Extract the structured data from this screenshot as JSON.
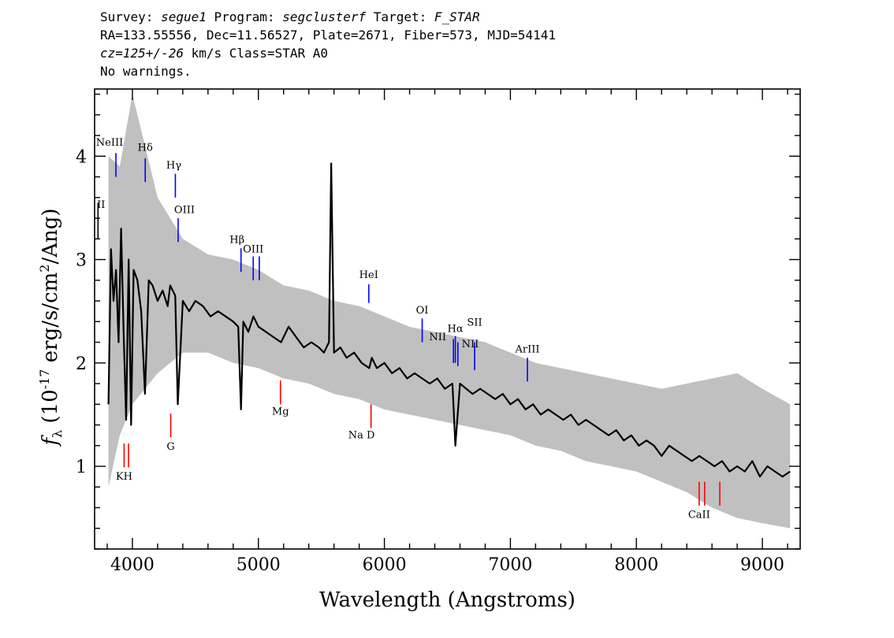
{
  "header": {
    "line1_survey_label": "Survey: ",
    "line1_survey": "segue1",
    "line1_program_label": " Program: ",
    "line1_program": "segclusterf",
    "line1_target_label": " Target: ",
    "line1_target": "F_STAR",
    "line2": "RA=133.55556, Dec=11.56527, Plate=2671, Fiber=573, MJD=54141",
    "line3_cz": "cz=125+/-26",
    "line3_rest": " km/s Class=STAR A0",
    "line4": "No warnings."
  },
  "chart_data": {
    "type": "line",
    "xlabel": "Wavelength (Angstroms)",
    "ylabel_parts": [
      "f",
      "λ",
      " (10",
      "-17",
      " erg/s/cm",
      "2",
      "/Ang)"
    ],
    "xlim": [
      3700,
      9300
    ],
    "ylim": [
      0.2,
      4.65
    ],
    "xticks": [
      4000,
      5000,
      6000,
      7000,
      8000,
      9000
    ],
    "yticks": [
      1,
      2,
      3,
      4
    ],
    "colors": {
      "flux": "#000000",
      "noise": "#c0c0c0",
      "emission": "#0000ff",
      "absorption": "#ff0000",
      "axis": "#000000"
    },
    "series": [
      {
        "role": "flux",
        "x": [
          3810,
          3830,
          3850,
          3870,
          3890,
          3910,
          3930,
          3950,
          3970,
          3990,
          4010,
          4040,
          4070,
          4100,
          4130,
          4160,
          4200,
          4240,
          4280,
          4300,
          4340,
          4360,
          4400,
          4450,
          4500,
          4560,
          4620,
          4680,
          4740,
          4800,
          4840,
          4862,
          4880,
          4920,
          4960,
          5000,
          5060,
          5120,
          5180,
          5240,
          5300,
          5360,
          5420,
          5480,
          5520,
          5560,
          5578,
          5600,
          5650,
          5700,
          5760,
          5820,
          5880,
          5900,
          5940,
          6000,
          6060,
          6120,
          6180,
          6240,
          6300,
          6360,
          6420,
          6480,
          6540,
          6563,
          6600,
          6650,
          6700,
          6760,
          6820,
          6880,
          6940,
          7000,
          7060,
          7120,
          7180,
          7240,
          7300,
          7360,
          7420,
          7480,
          7540,
          7600,
          7660,
          7720,
          7780,
          7840,
          7900,
          7960,
          8020,
          8080,
          8140,
          8200,
          8260,
          8320,
          8380,
          8440,
          8500,
          8560,
          8620,
          8680,
          8740,
          8800,
          8860,
          8920,
          8980,
          9040,
          9100,
          9160,
          9220
        ],
        "y": [
          1.6,
          3.1,
          2.6,
          2.9,
          2.2,
          3.3,
          2.3,
          1.45,
          3.0,
          1.4,
          2.9,
          2.8,
          2.5,
          1.7,
          2.8,
          2.75,
          2.6,
          2.7,
          2.55,
          2.75,
          2.65,
          1.6,
          2.6,
          2.5,
          2.6,
          2.55,
          2.45,
          2.5,
          2.45,
          2.4,
          2.35,
          1.55,
          2.4,
          2.3,
          2.45,
          2.35,
          2.3,
          2.25,
          2.2,
          2.35,
          2.25,
          2.15,
          2.2,
          2.15,
          2.1,
          2.2,
          3.93,
          2.1,
          2.15,
          2.05,
          2.1,
          2.0,
          1.95,
          2.05,
          1.95,
          2.0,
          1.9,
          1.95,
          1.85,
          1.9,
          1.85,
          1.8,
          1.85,
          1.75,
          1.8,
          1.2,
          1.8,
          1.75,
          1.7,
          1.75,
          1.7,
          1.65,
          1.7,
          1.6,
          1.65,
          1.55,
          1.6,
          1.5,
          1.55,
          1.5,
          1.45,
          1.5,
          1.4,
          1.45,
          1.4,
          1.35,
          1.3,
          1.35,
          1.25,
          1.3,
          1.2,
          1.25,
          1.2,
          1.1,
          1.2,
          1.15,
          1.1,
          1.05,
          1.1,
          1.05,
          1.0,
          1.05,
          0.95,
          1.0,
          0.95,
          1.05,
          0.9,
          1.0,
          0.95,
          0.9,
          0.95
        ]
      }
    ],
    "noise_envelope": {
      "x": [
        3810,
        3900,
        4000,
        4200,
        4400,
        4600,
        4800,
        5000,
        5200,
        5400,
        5600,
        5800,
        6000,
        6200,
        6400,
        6600,
        6800,
        7000,
        7200,
        7400,
        7600,
        7800,
        8000,
        8200,
        8400,
        8600,
        8800,
        9000,
        9220
      ],
      "low": [
        0.8,
        1.3,
        1.6,
        1.9,
        2.1,
        2.1,
        2.0,
        1.95,
        1.85,
        1.8,
        1.7,
        1.65,
        1.55,
        1.5,
        1.45,
        1.4,
        1.35,
        1.3,
        1.2,
        1.15,
        1.05,
        1.0,
        0.95,
        0.85,
        0.75,
        0.6,
        0.5,
        0.45,
        0.4
      ],
      "high": [
        4.0,
        3.9,
        4.6,
        3.6,
        3.2,
        3.05,
        3.0,
        2.9,
        2.75,
        2.7,
        2.6,
        2.55,
        2.45,
        2.35,
        2.3,
        2.25,
        2.2,
        2.1,
        2.0,
        1.95,
        1.9,
        1.85,
        1.8,
        1.75,
        1.8,
        1.85,
        1.9,
        1.75,
        1.6
      ]
    },
    "line_markers": [
      {
        "label": "NeIII",
        "kind": "emission",
        "x": 3869,
        "y0": 3.8,
        "y1": 4.03,
        "label_y": 4.1,
        "label_dx": -8
      },
      {
        "label": "Hδ",
        "kind": "emission",
        "x": 4102,
        "y0": 3.75,
        "y1": 3.98,
        "label_y": 4.05,
        "label_dx": 0
      },
      {
        "label": "Hγ",
        "kind": "emission",
        "x": 4341,
        "y0": 3.6,
        "y1": 3.83,
        "label_y": 3.88,
        "label_dx": -2
      },
      {
        "label": "OIII",
        "kind": "emission",
        "x": 4363,
        "y0": 3.17,
        "y1": 3.4,
        "label_y": 3.45,
        "label_dx": 8
      },
      {
        "label": "Hβ",
        "kind": "emission",
        "x": 4862,
        "y0": 2.88,
        "y1": 3.11,
        "label_y": 3.16,
        "label_dx": -5
      },
      {
        "label": "OIII",
        "kind": "emission",
        "x": 4959,
        "y0": 2.8,
        "y1": 3.03,
        "label_y": 3.07,
        "label_dx": 0
      },
      {
        "label": "OIII",
        "kind": "emission",
        "x": 5007,
        "y0": 2.8,
        "y1": 3.03,
        "label_y": 0,
        "label_dx": 0,
        "hide_label": true
      },
      {
        "label": "HeI",
        "kind": "emission",
        "x": 5876,
        "y0": 2.58,
        "y1": 2.76,
        "label_y": 2.82,
        "label_dx": 0
      },
      {
        "label": "OI",
        "kind": "emission",
        "x": 6300,
        "y0": 2.2,
        "y1": 2.43,
        "label_y": 2.48,
        "label_dx": 0
      },
      {
        "label": "NII",
        "kind": "emission",
        "x": 6548,
        "y0": 2.0,
        "y1": 2.23,
        "label_y": 2.22,
        "label_dx": -20
      },
      {
        "label": "Hα",
        "kind": "emission",
        "x": 6563,
        "y0": 2.0,
        "y1": 2.26,
        "label_y": 2.3,
        "label_dx": 0
      },
      {
        "label": "NII",
        "kind": "emission",
        "x": 6583,
        "y0": 1.97,
        "y1": 2.2,
        "label_y": 0,
        "label_dx": 0,
        "hide_label": true
      },
      {
        "label": "SII",
        "kind": "emission",
        "x": 6716,
        "y0": 1.93,
        "y1": 2.2,
        "label_y": 2.36,
        "label_dx": 0
      },
      {
        "label": "NII",
        "kind": "emission",
        "x": 6731,
        "y0": 1.93,
        "y1": 2.1,
        "label_y": 2.15,
        "label_dx": -8,
        "hide_line": true
      },
      {
        "label": "ArIII",
        "kind": "emission",
        "x": 7135,
        "y0": 1.82,
        "y1": 2.05,
        "label_y": 2.1,
        "label_dx": 0
      },
      {
        "label": "Mg",
        "kind": "absorption",
        "x": 5175,
        "y0": 1.6,
        "y1": 1.83,
        "label_y": 1.5,
        "label_dx": 0
      },
      {
        "label": "Na  D",
        "kind": "absorption",
        "x": 5894,
        "y0": 1.37,
        "y1": 1.6,
        "label_y": 1.27,
        "label_dx": -12
      },
      {
        "label": "G",
        "kind": "absorption",
        "x": 4304,
        "y0": 1.28,
        "y1": 1.51,
        "label_y": 1.16,
        "label_dx": 0
      },
      {
        "label": "KH",
        "kind": "absorption",
        "x": 3934,
        "y0": 0.99,
        "y1": 1.22,
        "label_y": 0.87,
        "label_dx": 0
      },
      {
        "label": "",
        "kind": "absorption",
        "x": 3969,
        "y0": 0.99,
        "y1": 1.22,
        "label_y": 0,
        "label_dx": 0,
        "hide_label": true
      },
      {
        "label": "CaII",
        "kind": "absorption",
        "x": 8498,
        "y0": 0.62,
        "y1": 0.85,
        "label_y": 0.5,
        "label_dx": 0
      },
      {
        "label": "",
        "kind": "absorption",
        "x": 8542,
        "y0": 0.62,
        "y1": 0.85,
        "label_y": 0,
        "label_dx": 0,
        "hide_label": true
      },
      {
        "label": "",
        "kind": "absorption",
        "x": 8662,
        "y0": 0.62,
        "y1": 0.85,
        "label_y": 0,
        "label_dx": 0,
        "hide_label": true
      },
      {
        "label": "II",
        "kind": "emission_black",
        "x": 3727,
        "y0": 3.2,
        "y1": 3.55,
        "label_y": 3.5,
        "label_dx": 4
      }
    ]
  }
}
